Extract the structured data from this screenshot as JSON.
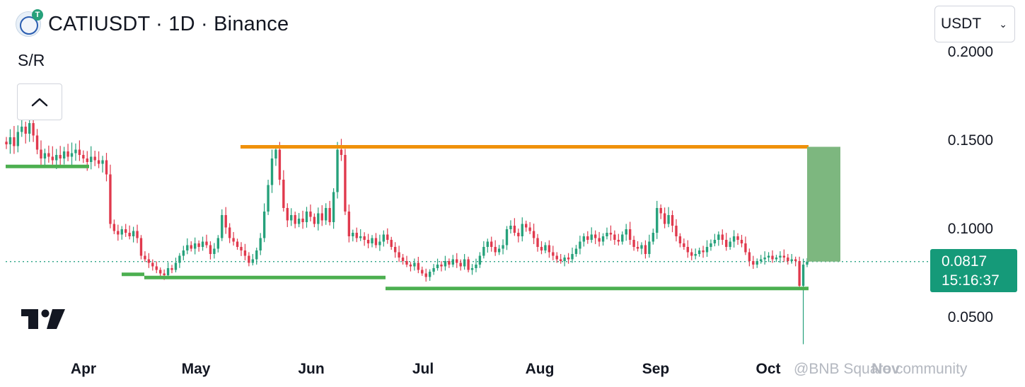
{
  "header": {
    "title": "CATIUSDT · 1D · Binance",
    "logo_letter": "T"
  },
  "indicator": {
    "label": "S/R"
  },
  "currency_select": {
    "value": "USDT"
  },
  "price_axis": [
    "0.2000",
    "0.1500",
    "0.1000",
    "0.0500"
  ],
  "last_price": {
    "price": "0.0817",
    "countdown": "15:16:37"
  },
  "time_axis": [
    "Apr",
    "May",
    "Jun",
    "Jul",
    "Aug",
    "Sep",
    "Oct",
    "Nov"
  ],
  "watermark": "@BNB Square community",
  "colors": {
    "up": "#26a17b",
    "down": "#e0394d",
    "resistance": "#f0910a",
    "support": "#4caf50",
    "target_zone": "#7db77f",
    "last_price_bg": "#159a79"
  },
  "chart_data": {
    "type": "candlestick",
    "symbol": "CATIUSDT",
    "interval": "1D",
    "exchange": "Binance",
    "ylim": [
      0.03,
      0.2
    ],
    "levels": {
      "resistance": 0.1466,
      "support_1": 0.1355,
      "support_2": 0.0727,
      "support_3": 0.0665
    },
    "target_zone": [
      0.0817,
      0.1466
    ],
    "close_series": [
      0.148,
      0.152,
      0.147,
      0.155,
      0.158,
      0.154,
      0.16,
      0.153,
      0.145,
      0.14,
      0.143,
      0.141,
      0.139,
      0.142,
      0.14,
      0.144,
      0.141,
      0.143,
      0.145,
      0.142,
      0.14,
      0.138,
      0.141,
      0.139,
      0.137,
      0.139,
      0.131,
      0.103,
      0.099,
      0.097,
      0.1,
      0.098,
      0.096,
      0.099,
      0.095,
      0.085,
      0.083,
      0.081,
      0.079,
      0.077,
      0.075,
      0.074,
      0.078,
      0.077,
      0.081,
      0.085,
      0.088,
      0.091,
      0.089,
      0.092,
      0.09,
      0.093,
      0.091,
      0.086,
      0.089,
      0.095,
      0.108,
      0.101,
      0.095,
      0.093,
      0.09,
      0.088,
      0.085,
      0.081,
      0.083,
      0.088,
      0.095,
      0.11,
      0.125,
      0.14,
      0.145,
      0.128,
      0.112,
      0.105,
      0.108,
      0.103,
      0.106,
      0.104,
      0.11,
      0.107,
      0.103,
      0.109,
      0.105,
      0.112,
      0.104,
      0.121,
      0.145,
      0.142,
      0.11,
      0.096,
      0.098,
      0.095,
      0.096,
      0.094,
      0.092,
      0.095,
      0.091,
      0.093,
      0.097,
      0.094,
      0.09,
      0.087,
      0.084,
      0.082,
      0.08,
      0.079,
      0.081,
      0.077,
      0.075,
      0.073,
      0.076,
      0.078,
      0.08,
      0.079,
      0.082,
      0.08,
      0.083,
      0.081,
      0.079,
      0.083,
      0.077,
      0.078,
      0.08,
      0.085,
      0.09,
      0.093,
      0.09,
      0.087,
      0.089,
      0.091,
      0.1,
      0.102,
      0.098,
      0.096,
      0.103,
      0.101,
      0.099,
      0.095,
      0.09,
      0.088,
      0.091,
      0.087,
      0.085,
      0.083,
      0.082,
      0.084,
      0.083,
      0.086,
      0.089,
      0.093,
      0.096,
      0.094,
      0.097,
      0.095,
      0.093,
      0.096,
      0.098,
      0.097,
      0.094,
      0.093,
      0.097,
      0.1,
      0.094,
      0.09,
      0.089,
      0.091,
      0.086,
      0.093,
      0.098,
      0.112,
      0.109,
      0.103,
      0.108,
      0.102,
      0.096,
      0.092,
      0.09,
      0.087,
      0.085,
      0.086,
      0.088,
      0.087,
      0.09,
      0.092,
      0.094,
      0.097,
      0.094,
      0.09,
      0.093,
      0.096,
      0.094,
      0.092,
      0.087,
      0.082,
      0.08,
      0.082,
      0.083,
      0.084,
      0.085,
      0.083,
      0.084,
      0.085,
      0.084,
      0.082,
      0.083,
      0.082,
      0.068,
      0.08,
      0.0817
    ]
  }
}
